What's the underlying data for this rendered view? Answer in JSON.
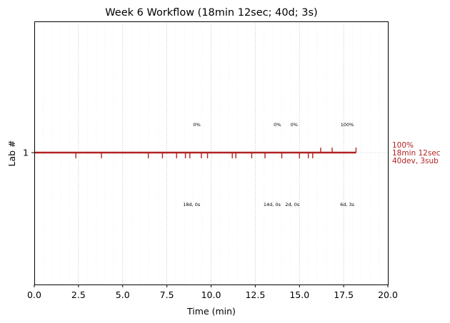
{
  "chart_data": {
    "type": "line",
    "title": "Week 6 Workflow (18min 12sec; 40d; 3s)",
    "xlabel": "Time (min)",
    "ylabel": "Lab #",
    "xlim": [
      0,
      20
    ],
    "x_ticks": [
      "0.0",
      "2.5",
      "5.0",
      "7.5",
      "10.0",
      "12.5",
      "15.0",
      "17.5",
      "20.0"
    ],
    "y_ticks": [
      "1"
    ],
    "grid": "dotted vertical at major ticks, faint at minor ticks",
    "series": [
      {
        "lab": 1,
        "start": 0,
        "end": 18.2,
        "color": "#b22222",
        "dev_events": [
          2.35,
          3.8,
          6.45,
          7.25,
          8.05,
          8.55,
          8.8,
          9.45,
          9.8,
          11.2,
          11.4,
          12.3,
          13.05,
          14.0,
          15.0,
          15.5,
          15.75
        ],
        "submit_events": [
          16.2,
          16.85,
          18.2
        ],
        "progress_labels": [
          {
            "x": 9.2,
            "text": "0%"
          },
          {
            "x": 13.75,
            "text": "0%"
          },
          {
            "x": 14.7,
            "text": "0%"
          },
          {
            "x": 17.7,
            "text": "100%"
          }
        ],
        "count_labels": [
          {
            "x": 8.9,
            "text": "18d, 0s"
          },
          {
            "x": 13.45,
            "text": "14d, 0s"
          },
          {
            "x": 14.6,
            "text": "2d, 0s"
          },
          {
            "x": 17.7,
            "text": "6d, 3s"
          }
        ],
        "end_label": [
          "100%",
          "18min 12sec",
          "40dev, 3sub"
        ]
      }
    ]
  }
}
